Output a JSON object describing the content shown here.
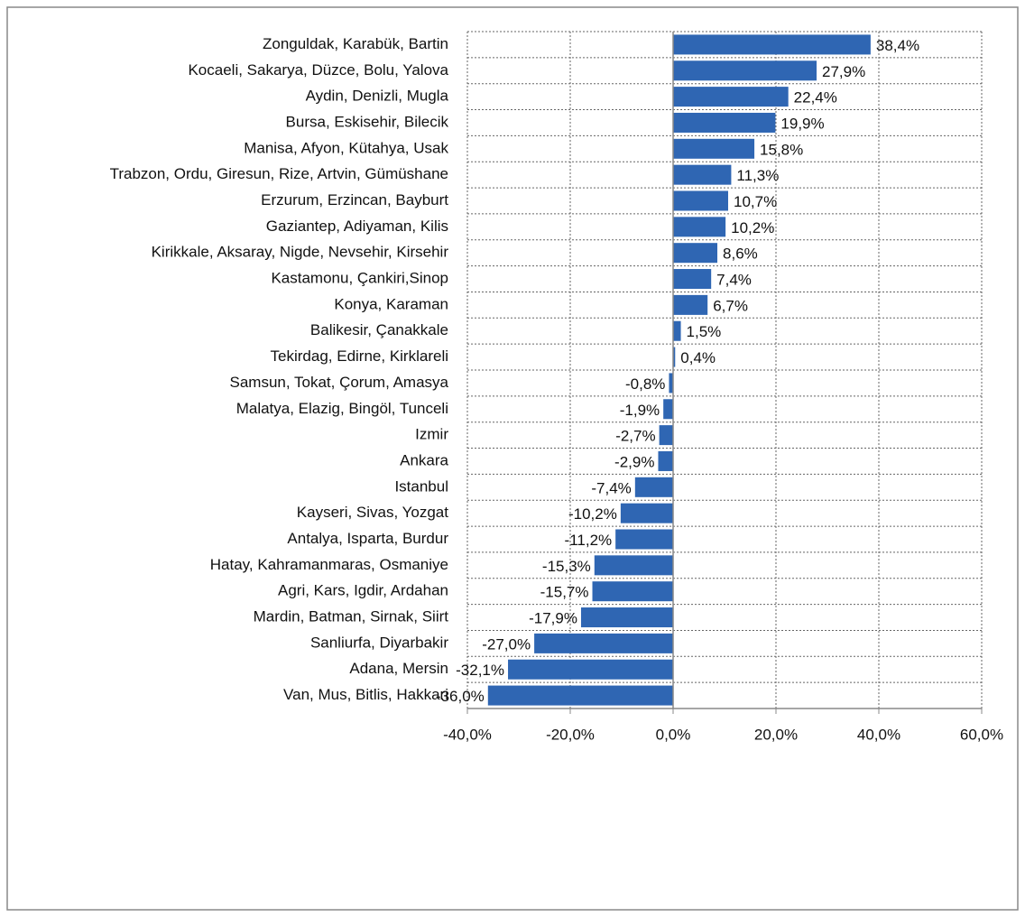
{
  "chart_data": {
    "type": "bar",
    "orientation": "horizontal",
    "color": "#2f66b3",
    "grid": true,
    "categories": [
      "Zonguldak, Karabük, Bartin",
      "Kocaeli, Sakarya, Düzce, Bolu, Yalova",
      "Aydin, Denizli, Mugla",
      "Bursa, Eskisehir, Bilecik",
      "Manisa, Afyon, Kütahya, Usak",
      "Trabzon, Ordu, Giresun, Rize, Artvin, Gümüshane",
      "Erzurum, Erzincan, Bayburt",
      "Gaziantep, Adiyaman, Kilis",
      "Kirikkale, Aksaray, Nigde, Nevsehir, Kirsehir",
      "Kastamonu, Çankiri,Sinop",
      "Konya, Karaman",
      "Balikesir, Çanakkale",
      "Tekirdag, Edirne, Kirklareli",
      "Samsun, Tokat, Çorum, Amasya",
      "Malatya, Elazig, Bingöl, Tunceli",
      "Izmir",
      "Ankara",
      "Istanbul",
      "Kayseri, Sivas, Yozgat",
      "Antalya, Isparta, Burdur",
      "Hatay, Kahramanmaras, Osmaniye",
      "Agri, Kars, Igdir, Ardahan",
      "Mardin, Batman, Sirnak, Siirt",
      "Sanliurfa, Diyarbakir",
      "Adana, Mersin",
      "Van, Mus, Bitlis, Hakkari"
    ],
    "values": [
      38.4,
      27.9,
      22.4,
      19.9,
      15.8,
      11.3,
      10.7,
      10.2,
      8.6,
      7.4,
      6.7,
      1.5,
      0.4,
      -0.8,
      -1.9,
      -2.7,
      -2.9,
      -7.4,
      -10.2,
      -11.2,
      -15.3,
      -15.7,
      -17.9,
      -27.0,
      -32.1,
      -36.0
    ],
    "value_labels": [
      "38,4%",
      "27,9%",
      "22,4%",
      "19,9%",
      "15,8%",
      "11,3%",
      "10,7%",
      "10,2%",
      "8,6%",
      "7,4%",
      "6,7%",
      "1,5%",
      "0,4%",
      "-0,8%",
      "-1,9%",
      "-2,7%",
      "-2,9%",
      "-7,4%",
      "-10,2%",
      "-11,2%",
      "-15,3%",
      "-15,7%",
      "-17,9%",
      "-27,0%",
      "-32,1%",
      "-36,0%"
    ],
    "xlim": [
      -40,
      60
    ],
    "xticks": [
      {
        "value": -40,
        "label": "-40,0%"
      },
      {
        "value": -20,
        "label": "-20,0%"
      },
      {
        "value": 0,
        "label": "0,0%"
      },
      {
        "value": 20,
        "label": "20,0%"
      },
      {
        "value": 40,
        "label": "40,0%"
      },
      {
        "value": 60,
        "label": "60,0%"
      }
    ]
  }
}
